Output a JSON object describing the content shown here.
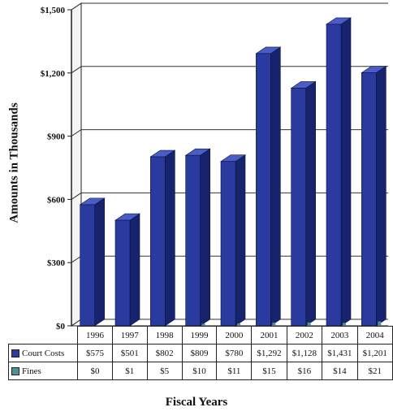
{
  "chart_data": {
    "type": "bar",
    "title": "",
    "xlabel": "Fiscal Years",
    "ylabel": "Amounts in Thousands",
    "ylim": [
      0,
      1500
    ],
    "yticks": [
      "$0",
      "$300",
      "$600",
      "$900",
      "$1,200",
      "$1,500"
    ],
    "categories": [
      "1996",
      "1997",
      "1998",
      "1999",
      "2000",
      "2001",
      "2002",
      "2003",
      "2004"
    ],
    "series": [
      {
        "name": "Court Costs",
        "values": [
          575,
          501,
          802,
          809,
          780,
          1292,
          1128,
          1431,
          1201
        ],
        "labels": [
          "$575",
          "$501",
          "$802",
          "$809",
          "$780",
          "$1,292",
          "$1,128",
          "$1,431",
          "$1,201"
        ],
        "color": "#2a3a9e"
      },
      {
        "name": "Fines",
        "values": [
          0,
          1,
          5,
          10,
          11,
          15,
          16,
          14,
          21
        ],
        "labels": [
          "$0",
          "$1",
          "$5",
          "$10",
          "$11",
          "$15",
          "$16",
          "$14",
          "$21"
        ],
        "color": "#4d8f9a"
      }
    ],
    "grid": true,
    "style": "3d-bars-with-data-table"
  }
}
